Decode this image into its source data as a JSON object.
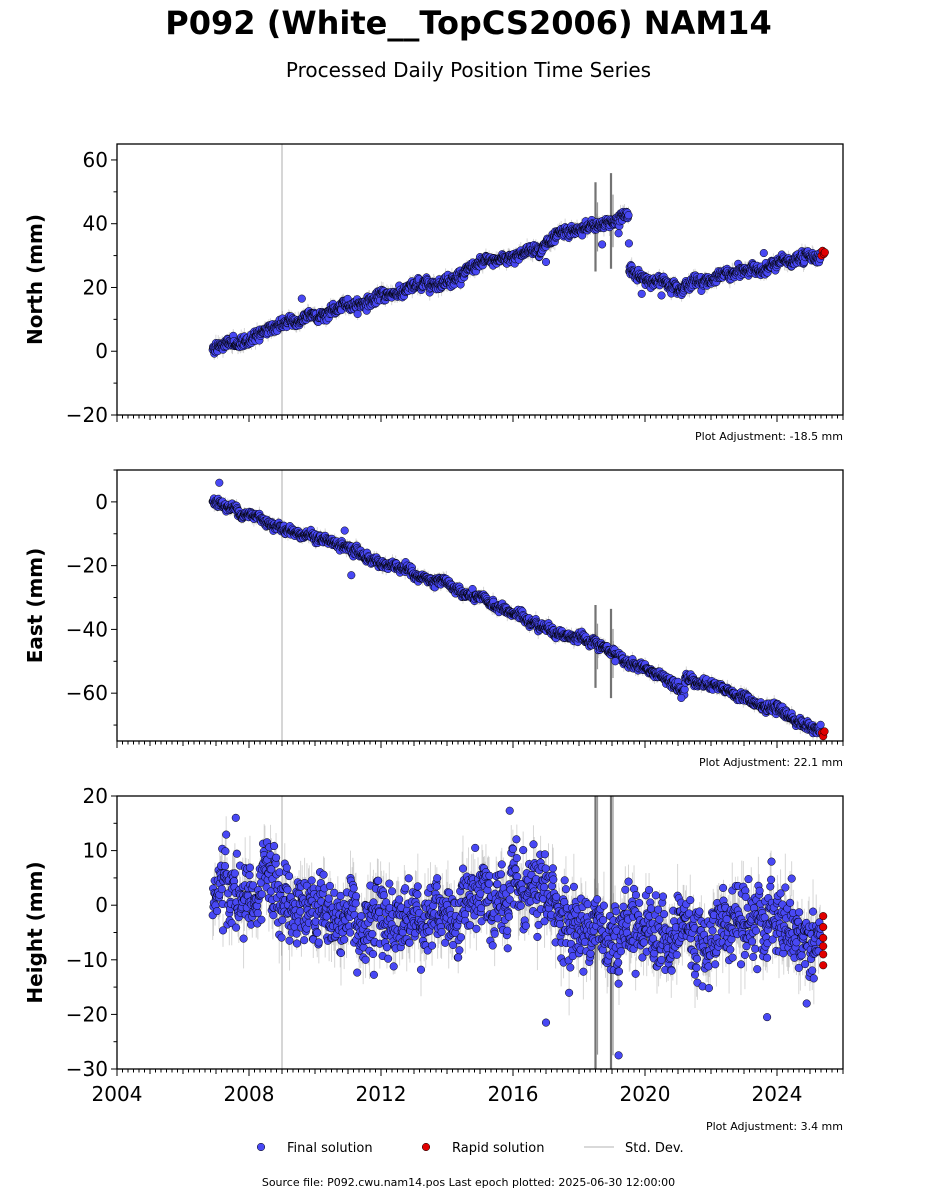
{
  "title": "P092 (White__TopCS2006) NAM14",
  "subtitle": "Processed Daily Position Time Series",
  "footer": "Source file: P092.cwu.nam14.pos  Last epoch plotted: 2025-06-30 12:00:00",
  "legend": {
    "final_label": "Final solution",
    "rapid_label": "Rapid solution",
    "std_label": "Std. Dev.",
    "placement": "bottom-center, below plots"
  },
  "colors": {
    "final": "#4848f4",
    "rapid": "#e00000",
    "std": "#000000",
    "marker_edge": "#000000",
    "event_line": "#c8c8c8"
  },
  "chart_data": [
    {
      "type": "scatter",
      "ylabel": "North (mm)",
      "xlim": [
        2004,
        2026
      ],
      "ylim": [
        -20,
        65
      ],
      "yticks": [
        -20,
        0,
        20,
        40,
        60
      ],
      "xticks": [
        2004,
        2008,
        2012,
        2016,
        2020,
        2024
      ],
      "show_xtick_labels": false,
      "adjustment_label": "Plot Adjustment: -18.5 mm",
      "event_lines": [
        2009.0
      ],
      "noise_mm": 1.1,
      "std_mm": 2.0,
      "spike_events": [
        {
          "t": 2018.5,
          "half_range": 14
        },
        {
          "t": 2018.97,
          "half_range": 15
        }
      ],
      "trend_points": [
        {
          "t": 2006.9,
          "y": 0.5
        },
        {
          "t": 2010.0,
          "y": 11
        },
        {
          "t": 2014.0,
          "y": 23
        },
        {
          "t": 2018.0,
          "y": 37
        },
        {
          "t": 2019.5,
          "y": 43
        },
        {
          "t": 2019.52,
          "y": 27
        },
        {
          "t": 2019.9,
          "y": 22
        },
        {
          "t": 2021.0,
          "y": 21.5
        },
        {
          "t": 2022.5,
          "y": 23.5
        },
        {
          "t": 2025.4,
          "y": 30.5
        }
      ],
      "outliers": [
        {
          "t": 2009.6,
          "y": 16.5
        },
        {
          "t": 2017.0,
          "y": 28
        },
        {
          "t": 2018.7,
          "y": 33.5
        },
        {
          "t": 2019.2,
          "y": 37
        },
        {
          "t": 2020.5,
          "y": 17.5
        },
        {
          "t": 2023.6,
          "y": 30.8
        },
        {
          "t": 2019.9,
          "y": 18
        }
      ],
      "rapid_points": [
        {
          "t": 2025.35,
          "y": 30.0
        },
        {
          "t": 2025.38,
          "y": 31.5
        },
        {
          "t": 2025.42,
          "y": 30.5
        },
        {
          "t": 2025.45,
          "y": 31.0
        }
      ]
    },
    {
      "type": "scatter",
      "ylabel": "East (mm)",
      "xlim": [
        2004,
        2026
      ],
      "ylim": [
        -75,
        10
      ],
      "yticks": [
        -60,
        -40,
        -20,
        0
      ],
      "xticks": [
        2004,
        2008,
        2012,
        2016,
        2020,
        2024
      ],
      "show_xtick_labels": false,
      "adjustment_label": "Plot Adjustment: 22.1 mm",
      "event_lines": [
        2009.0
      ],
      "noise_mm": 0.9,
      "std_mm": 1.8,
      "spike_events": [
        {
          "t": 2018.5,
          "half_range": 13
        },
        {
          "t": 2018.97,
          "half_range": 14
        }
      ],
      "trend_points": [
        {
          "t": 2006.9,
          "y": 0
        },
        {
          "t": 2010.0,
          "y": -11
        },
        {
          "t": 2014.0,
          "y": -27
        },
        {
          "t": 2018.0,
          "y": -43
        },
        {
          "t": 2021.2,
          "y": -58
        },
        {
          "t": 2021.22,
          "y": -54
        },
        {
          "t": 2025.4,
          "y": -72
        }
      ],
      "outliers": [
        {
          "t": 2007.1,
          "y": 6
        },
        {
          "t": 2011.1,
          "y": -23
        },
        {
          "t": 2010.9,
          "y": -9
        },
        {
          "t": 2019.1,
          "y": -50
        },
        {
          "t": 2021.1,
          "y": -61.5
        }
      ],
      "rapid_points": [
        {
          "t": 2025.36,
          "y": -72.5
        },
        {
          "t": 2025.4,
          "y": -73.5
        },
        {
          "t": 2025.44,
          "y": -72.0
        }
      ]
    },
    {
      "type": "scatter",
      "ylabel": "Height (mm)",
      "xlim": [
        2004,
        2026
      ],
      "ylim": [
        -30,
        20
      ],
      "yticks": [
        -30,
        -20,
        -10,
        0,
        10,
        20
      ],
      "xticks": [
        2004,
        2008,
        2012,
        2016,
        2020,
        2024
      ],
      "show_xtick_labels": true,
      "adjustment_label": "Plot Adjustment: 3.4 mm",
      "event_lines": [
        2009.0
      ],
      "noise_mm": 4.2,
      "std_mm": 4.5,
      "spike_events": [
        {
          "t": 2018.5,
          "half_range": 45
        },
        {
          "t": 2018.97,
          "half_range": 45
        }
      ],
      "trend_points": [
        {
          "t": 2006.9,
          "y": 1
        },
        {
          "t": 2012.0,
          "y": -1
        },
        {
          "t": 2016.0,
          "y": -2
        },
        {
          "t": 2020.0,
          "y": -3
        },
        {
          "t": 2025.4,
          "y": -5
        }
      ],
      "outliers": [
        {
          "t": 2007.6,
          "y": 16
        },
        {
          "t": 2015.9,
          "y": 17.3
        },
        {
          "t": 2019.2,
          "y": -27.5
        },
        {
          "t": 2017.0,
          "y": -21.5
        },
        {
          "t": 2023.7,
          "y": -20.5
        },
        {
          "t": 2024.9,
          "y": -18
        }
      ],
      "rapid_points": [
        {
          "t": 2025.4,
          "y": -2
        },
        {
          "t": 2025.4,
          "y": -4
        },
        {
          "t": 2025.4,
          "y": -6
        },
        {
          "t": 2025.4,
          "y": -7.5
        },
        {
          "t": 2025.4,
          "y": -9
        },
        {
          "t": 2025.4,
          "y": -11
        }
      ]
    }
  ]
}
